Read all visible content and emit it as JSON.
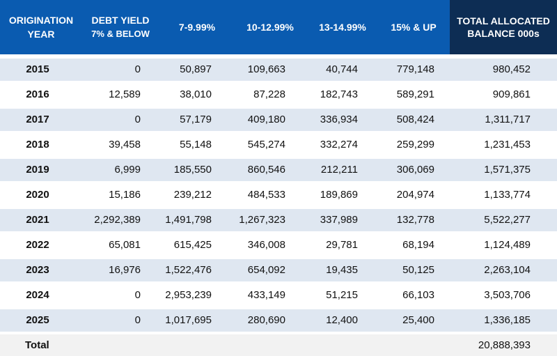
{
  "chart_data": {
    "type": "table",
    "headers": {
      "year": "ORIGINATION YEAR",
      "debt_yield_title": "DEBT YIELD",
      "debt_yield_sub": "7% & BELOW",
      "col2": "7-9.99%",
      "col3": "10-12.99%",
      "col4": "13-14.99%",
      "col5": "15% & UP",
      "total": "TOTAL ALLOCATED BALANCE 000s"
    },
    "rows": [
      {
        "year": "2015",
        "values": [
          "0",
          "50,897",
          "109,663",
          "40,744",
          "779,148"
        ],
        "total": "980,452"
      },
      {
        "year": "2016",
        "values": [
          "12,589",
          "38,010",
          "87,228",
          "182,743",
          "589,291"
        ],
        "total": "909,861"
      },
      {
        "year": "2017",
        "values": [
          "0",
          "57,179",
          "409,180",
          "336,934",
          "508,424"
        ],
        "total": "1,311,717"
      },
      {
        "year": "2018",
        "values": [
          "39,458",
          "55,148",
          "545,274",
          "332,274",
          "259,299"
        ],
        "total": "1,231,453"
      },
      {
        "year": "2019",
        "values": [
          "6,999",
          "185,550",
          "860,546",
          "212,211",
          "306,069"
        ],
        "total": "1,571,375"
      },
      {
        "year": "2020",
        "values": [
          "15,186",
          "239,212",
          "484,533",
          "189,869",
          "204,974"
        ],
        "total": "1,133,774"
      },
      {
        "year": "2021",
        "values": [
          "2,292,389",
          "1,491,798",
          "1,267,323",
          "337,989",
          "132,778"
        ],
        "total": "5,522,277"
      },
      {
        "year": "2022",
        "values": [
          "65,081",
          "615,425",
          "346,008",
          "29,781",
          "68,194"
        ],
        "total": "1,124,489"
      },
      {
        "year": "2023",
        "values": [
          "16,976",
          "1,522,476",
          "654,092",
          "19,435",
          "50,125"
        ],
        "total": "2,263,104"
      },
      {
        "year": "2024",
        "values": [
          "0",
          "2,953,239",
          "433,149",
          "51,215",
          "66,103"
        ],
        "total": "3,503,706"
      },
      {
        "year": "2025",
        "values": [
          "0",
          "1,017,695",
          "280,690",
          "12,400",
          "25,400"
        ],
        "total": "1,336,185"
      }
    ],
    "total_row": {
      "label": "Total",
      "total": "20,888,393"
    },
    "colors": {
      "header": "#0a5bb0",
      "header_total": "#0d2d54",
      "row_shaded": "#dfe7f1",
      "row_total": "#f2f2f2"
    }
  }
}
